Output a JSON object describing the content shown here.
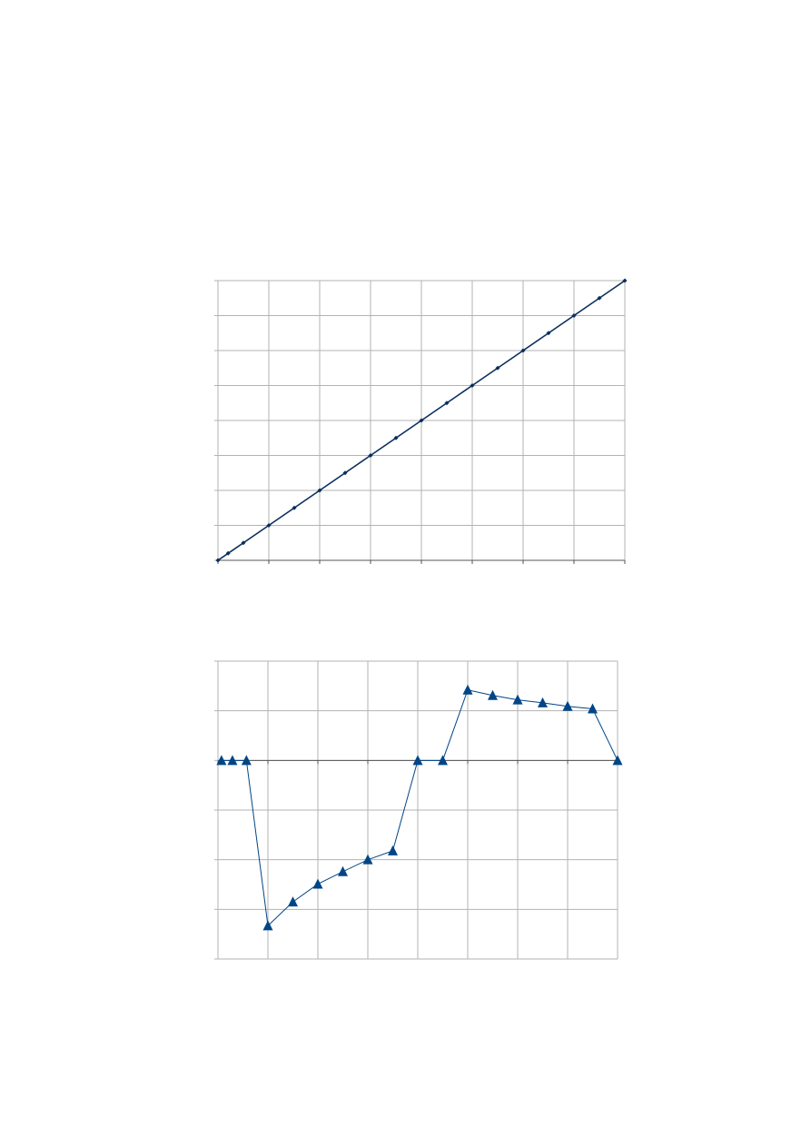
{
  "chart_data": [
    {
      "type": "line",
      "marker": "diamond",
      "color": "#0a2f5c",
      "x": [
        0,
        0.2,
        0.5,
        1,
        1.5,
        2,
        2.5,
        3,
        3.5,
        4,
        4.5,
        5,
        5.5,
        6,
        6.5,
        7,
        7.5,
        8
      ],
      "values": [
        0,
        0.2,
        0.5,
        1,
        1.5,
        2,
        2.5,
        3,
        3.5,
        4,
        4.5,
        5,
        5.5,
        6,
        6.5,
        7,
        7.5,
        8
      ],
      "xlim": [
        0,
        8
      ],
      "xticks": [
        0,
        1,
        2,
        3,
        4,
        5,
        6,
        7,
        8
      ],
      "ylim": [
        0,
        8
      ],
      "yticks": [
        0,
        1,
        2,
        3,
        4,
        5,
        6,
        7,
        8
      ],
      "grid": true
    },
    {
      "type": "line",
      "marker": "triangle",
      "color": "#004586",
      "x": [
        0.07,
        0.29,
        0.57,
        1,
        1.5,
        2,
        2.5,
        3,
        3.5,
        4,
        4.5,
        5,
        5.5,
        6,
        6.5,
        7,
        7.5,
        8
      ],
      "values": [
        0,
        0,
        0,
        -3.33,
        -2.85,
        -2.49,
        -2.24,
        -2.0,
        -1.82,
        0,
        0,
        1.42,
        1.31,
        1.22,
        1.16,
        1.09,
        1.04,
        0
      ],
      "xlim": [
        0,
        8
      ],
      "xticks": [
        0,
        1,
        2,
        3,
        4,
        5,
        6,
        7,
        8
      ],
      "ylim": [
        -4,
        2
      ],
      "yticks": [
        -4,
        -3,
        -2,
        -1,
        0,
        1,
        2
      ],
      "grid": true
    }
  ]
}
